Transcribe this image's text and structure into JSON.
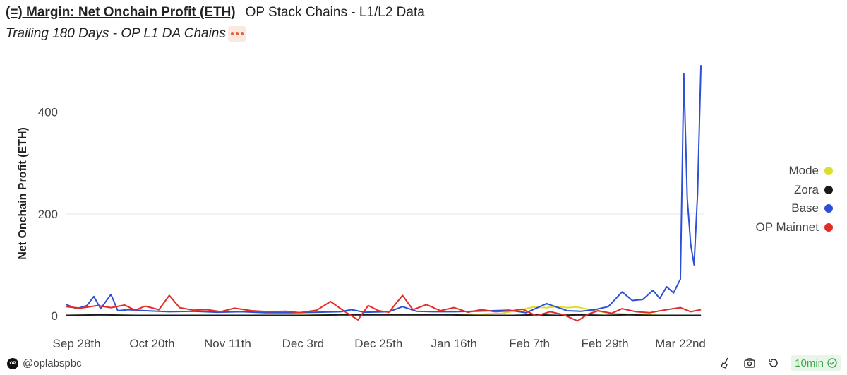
{
  "header": {
    "title": "(=) Margin: Net Onchain Profit (ETH)",
    "source": "OP Stack Chains - L1/L2 Data",
    "subtitle": "Trailing 180 Days - OP L1 DA Chains"
  },
  "footer": {
    "author": "@oplabspbc",
    "refresh_label": "10min",
    "logo_text": "OP"
  },
  "icons": [
    "broom-icon",
    "camera-icon",
    "undo-icon",
    "check-circle-icon",
    "more-icon"
  ],
  "chart_data": {
    "type": "line",
    "title": "(=) Margin: Net Onchain Profit (ETH)",
    "subtitle": "Trailing 180 Days - OP L1 DA Chains",
    "ylabel": "Net Onchain Profit (ETH)",
    "xlabel": "",
    "x_range": [
      "2023-09-25",
      "2024-03-29"
    ],
    "ylim": [
      -15,
      495
    ],
    "yticks": [
      0,
      200,
      400
    ],
    "xticks": [
      "Sep 28th",
      "Oct 20th",
      "Nov 11th",
      "Dec 3rd",
      "Dec 25th",
      "Jan 16th",
      "Feb 7th",
      "Feb 29th",
      "Mar 22nd"
    ],
    "xtick_dates": [
      "2023-09-28",
      "2023-10-20",
      "2023-11-11",
      "2023-12-03",
      "2023-12-25",
      "2024-01-16",
      "2024-02-07",
      "2024-02-29",
      "2024-03-22"
    ],
    "legend_position": "right",
    "grid": "horizontal",
    "series": [
      {
        "name": "Mode",
        "color": "#dede2c",
        "points": [
          [
            "2023-11-11",
            1
          ],
          [
            "2023-11-21",
            1
          ],
          [
            "2023-12-01",
            1
          ],
          [
            "2023-12-11",
            2
          ],
          [
            "2023-12-21",
            2
          ],
          [
            "2023-12-31",
            2
          ],
          [
            "2024-01-10",
            2
          ],
          [
            "2024-01-20",
            2
          ],
          [
            "2024-01-30",
            5
          ],
          [
            "2024-02-03",
            10
          ],
          [
            "2024-02-06",
            14
          ],
          [
            "2024-02-08",
            17
          ],
          [
            "2024-02-12",
            16
          ],
          [
            "2024-02-15",
            18
          ],
          [
            "2024-02-18",
            16
          ],
          [
            "2024-02-21",
            17
          ],
          [
            "2024-02-24",
            13
          ],
          [
            "2024-02-27",
            9
          ],
          [
            "2024-03-02",
            5
          ],
          [
            "2024-03-07",
            3
          ],
          [
            "2024-03-12",
            2
          ],
          [
            "2024-03-17",
            1
          ],
          [
            "2024-03-23",
            1
          ],
          [
            "2024-03-28",
            1
          ]
        ]
      },
      {
        "name": "Zora",
        "color": "#1a1a1a",
        "points": [
          [
            "2023-09-25",
            1
          ],
          [
            "2023-10-05",
            2
          ],
          [
            "2023-10-15",
            1
          ],
          [
            "2023-10-25",
            1
          ],
          [
            "2023-11-04",
            1
          ],
          [
            "2023-11-14",
            1
          ],
          [
            "2023-11-24",
            1
          ],
          [
            "2023-12-04",
            1
          ],
          [
            "2023-12-14",
            2
          ],
          [
            "2023-12-24",
            2
          ],
          [
            "2024-01-03",
            2
          ],
          [
            "2024-01-13",
            2
          ],
          [
            "2024-01-23",
            1
          ],
          [
            "2024-02-02",
            1
          ],
          [
            "2024-02-09",
            2
          ],
          [
            "2024-02-15",
            1
          ],
          [
            "2024-02-22",
            2
          ],
          [
            "2024-02-29",
            1
          ],
          [
            "2024-03-07",
            2
          ],
          [
            "2024-03-14",
            1
          ],
          [
            "2024-03-21",
            1
          ],
          [
            "2024-03-28",
            1
          ]
        ]
      },
      {
        "name": "Base",
        "color": "#2c4fd8",
        "points": [
          [
            "2023-09-25",
            22
          ],
          [
            "2023-09-28",
            14
          ],
          [
            "2023-10-01",
            20
          ],
          [
            "2023-10-03",
            38
          ],
          [
            "2023-10-05",
            14
          ],
          [
            "2023-10-08",
            42
          ],
          [
            "2023-10-10",
            10
          ],
          [
            "2023-10-13",
            12
          ],
          [
            "2023-10-18",
            10
          ],
          [
            "2023-10-25",
            8
          ],
          [
            "2023-11-01",
            9
          ],
          [
            "2023-11-08",
            7
          ],
          [
            "2023-11-15",
            8
          ],
          [
            "2023-11-22",
            6
          ],
          [
            "2023-11-30",
            6
          ],
          [
            "2023-12-07",
            7
          ],
          [
            "2023-12-14",
            8
          ],
          [
            "2023-12-17",
            12
          ],
          [
            "2023-12-21",
            7
          ],
          [
            "2023-12-28",
            8
          ],
          [
            "2024-01-01",
            18
          ],
          [
            "2024-01-05",
            9
          ],
          [
            "2024-01-10",
            8
          ],
          [
            "2024-01-16",
            8
          ],
          [
            "2024-01-22",
            9
          ],
          [
            "2024-01-27",
            10
          ],
          [
            "2024-02-01",
            11
          ],
          [
            "2024-02-06",
            6
          ],
          [
            "2024-02-09",
            15
          ],
          [
            "2024-02-12",
            24
          ],
          [
            "2024-02-15",
            17
          ],
          [
            "2024-02-18",
            10
          ],
          [
            "2024-02-22",
            9
          ],
          [
            "2024-02-26",
            12
          ],
          [
            "2024-03-01",
            18
          ],
          [
            "2024-03-05",
            47
          ],
          [
            "2024-03-08",
            30
          ],
          [
            "2024-03-11",
            32
          ],
          [
            "2024-03-14",
            50
          ],
          [
            "2024-03-16",
            34
          ],
          [
            "2024-03-18",
            57
          ],
          [
            "2024-03-20",
            45
          ],
          [
            "2024-03-22",
            72
          ],
          [
            "2024-03-23",
            475
          ],
          [
            "2024-03-24",
            230
          ],
          [
            "2024-03-25",
            140
          ],
          [
            "2024-03-26",
            100
          ],
          [
            "2024-03-27",
            240
          ],
          [
            "2024-03-28",
            492
          ]
        ]
      },
      {
        "name": "OP Mainnet",
        "color": "#e22d27",
        "points": [
          [
            "2023-09-25",
            18
          ],
          [
            "2023-09-29",
            15
          ],
          [
            "2023-10-04",
            20
          ],
          [
            "2023-10-08",
            16
          ],
          [
            "2023-10-12",
            21
          ],
          [
            "2023-10-15",
            11
          ],
          [
            "2023-10-18",
            19
          ],
          [
            "2023-10-22",
            12
          ],
          [
            "2023-10-25",
            40
          ],
          [
            "2023-10-28",
            16
          ],
          [
            "2023-11-01",
            11
          ],
          [
            "2023-11-05",
            12
          ],
          [
            "2023-11-09",
            8
          ],
          [
            "2023-11-13",
            15
          ],
          [
            "2023-11-18",
            10
          ],
          [
            "2023-11-23",
            8
          ],
          [
            "2023-11-28",
            9
          ],
          [
            "2023-12-02",
            6
          ],
          [
            "2023-12-07",
            11
          ],
          [
            "2023-12-11",
            28
          ],
          [
            "2023-12-15",
            9
          ],
          [
            "2023-12-19",
            -8
          ],
          [
            "2023-12-22",
            20
          ],
          [
            "2023-12-25",
            10
          ],
          [
            "2023-12-28",
            7
          ],
          [
            "2024-01-01",
            40
          ],
          [
            "2024-01-04",
            12
          ],
          [
            "2024-01-08",
            22
          ],
          [
            "2024-01-12",
            10
          ],
          [
            "2024-01-16",
            16
          ],
          [
            "2024-01-20",
            7
          ],
          [
            "2024-01-24",
            12
          ],
          [
            "2024-01-28",
            8
          ],
          [
            "2024-02-02",
            10
          ],
          [
            "2024-02-05",
            13
          ],
          [
            "2024-02-09",
            0
          ],
          [
            "2024-02-13",
            8
          ],
          [
            "2024-02-17",
            2
          ],
          [
            "2024-02-21",
            -10
          ],
          [
            "2024-02-24",
            3
          ],
          [
            "2024-02-27",
            10
          ],
          [
            "2024-03-02",
            5
          ],
          [
            "2024-03-05",
            14
          ],
          [
            "2024-03-09",
            8
          ],
          [
            "2024-03-13",
            6
          ],
          [
            "2024-03-18",
            12
          ],
          [
            "2024-03-22",
            16
          ],
          [
            "2024-03-25",
            8
          ],
          [
            "2024-03-28",
            12
          ]
        ]
      }
    ]
  }
}
